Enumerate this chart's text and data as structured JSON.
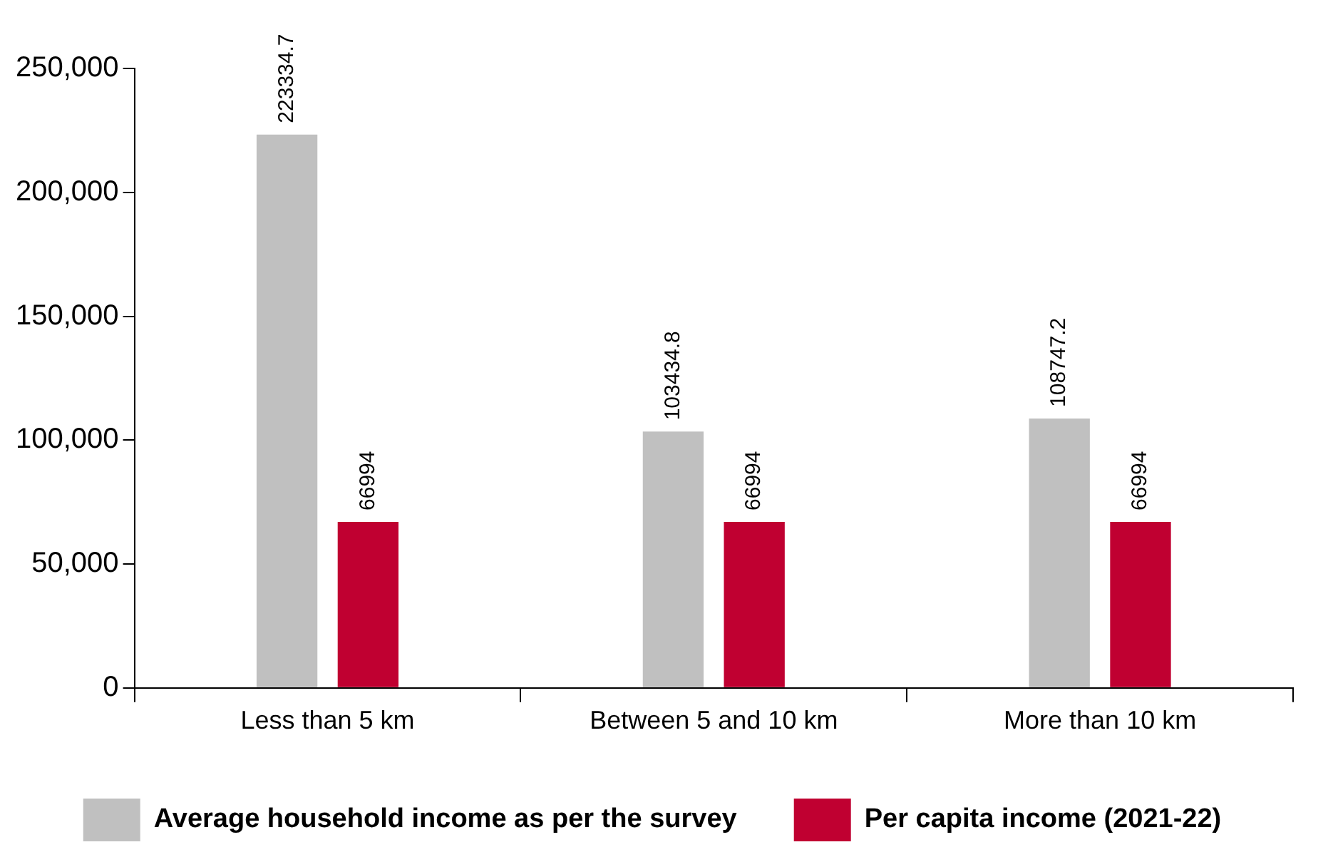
{
  "chart_data": {
    "type": "bar",
    "categories": [
      "Less than 5 km",
      "Between 5 and 10 km",
      "More than 10 km"
    ],
    "series": [
      {
        "name": "Average household income as per the survey",
        "color": "#c0c0c0",
        "values": [
          223334.7,
          103434.8,
          108747.2
        ]
      },
      {
        "name": "Per capita income (2021-22)",
        "color": "#c00031",
        "values": [
          66994,
          66994,
          66994
        ]
      }
    ],
    "ylim": [
      0,
      250000
    ],
    "yticks": [
      {
        "value": 0,
        "label": "0"
      },
      {
        "value": 50000,
        "label": "50,000"
      },
      {
        "value": 100000,
        "label": "100,000"
      },
      {
        "value": 150000,
        "label": "150,000"
      },
      {
        "value": 200000,
        "label": "200,000"
      },
      {
        "value": 250000,
        "label": "250,000"
      }
    ],
    "data_labels": true,
    "grid": false,
    "legend": "bottom"
  }
}
